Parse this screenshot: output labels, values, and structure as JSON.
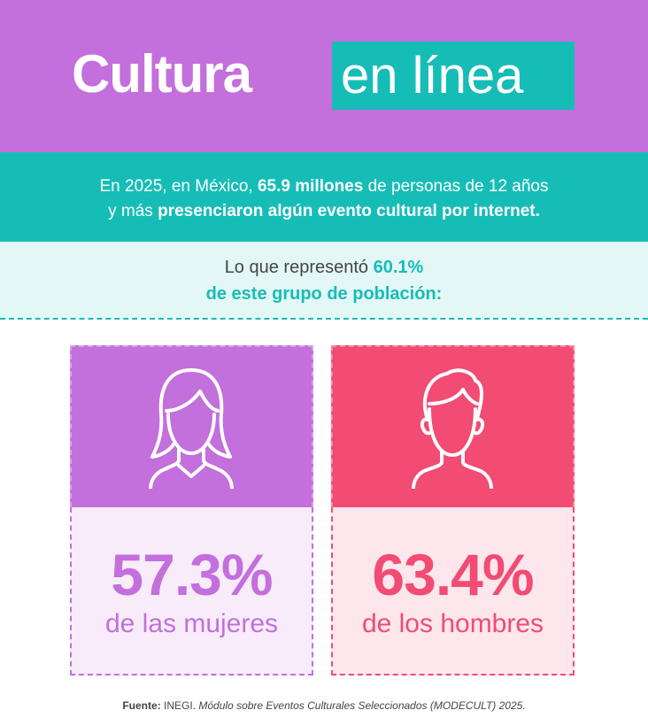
{
  "header": {
    "title_bold": "Cultura",
    "title_light": "en línea",
    "bg_color": "#c36fdc",
    "accent_color": "#16bdb7"
  },
  "summary": {
    "line1_pre": "En 2025, en México, ",
    "line1_bold": "65.9 millones",
    "line1_post": " de personas de 12 años",
    "line2_pre": "y más ",
    "line2_bold": "presenciaron algún evento cultural por internet."
  },
  "representation": {
    "pre": "Lo que representó ",
    "pct": "60.1%",
    "line2": "de este grupo de población:"
  },
  "cards": {
    "women": {
      "icon": "woman-icon",
      "pct": "57.3%",
      "label": "de las mujeres",
      "color": "#c36fdc"
    },
    "men": {
      "icon": "man-icon",
      "pct": "63.4%",
      "label": "de los hombres",
      "color": "#f24b74"
    }
  },
  "source": {
    "label": "Fuente:",
    "org": " INEGI. ",
    "title": "Módulo sobre Eventos Culturales Seleccionados (MODECULT) 2025."
  }
}
